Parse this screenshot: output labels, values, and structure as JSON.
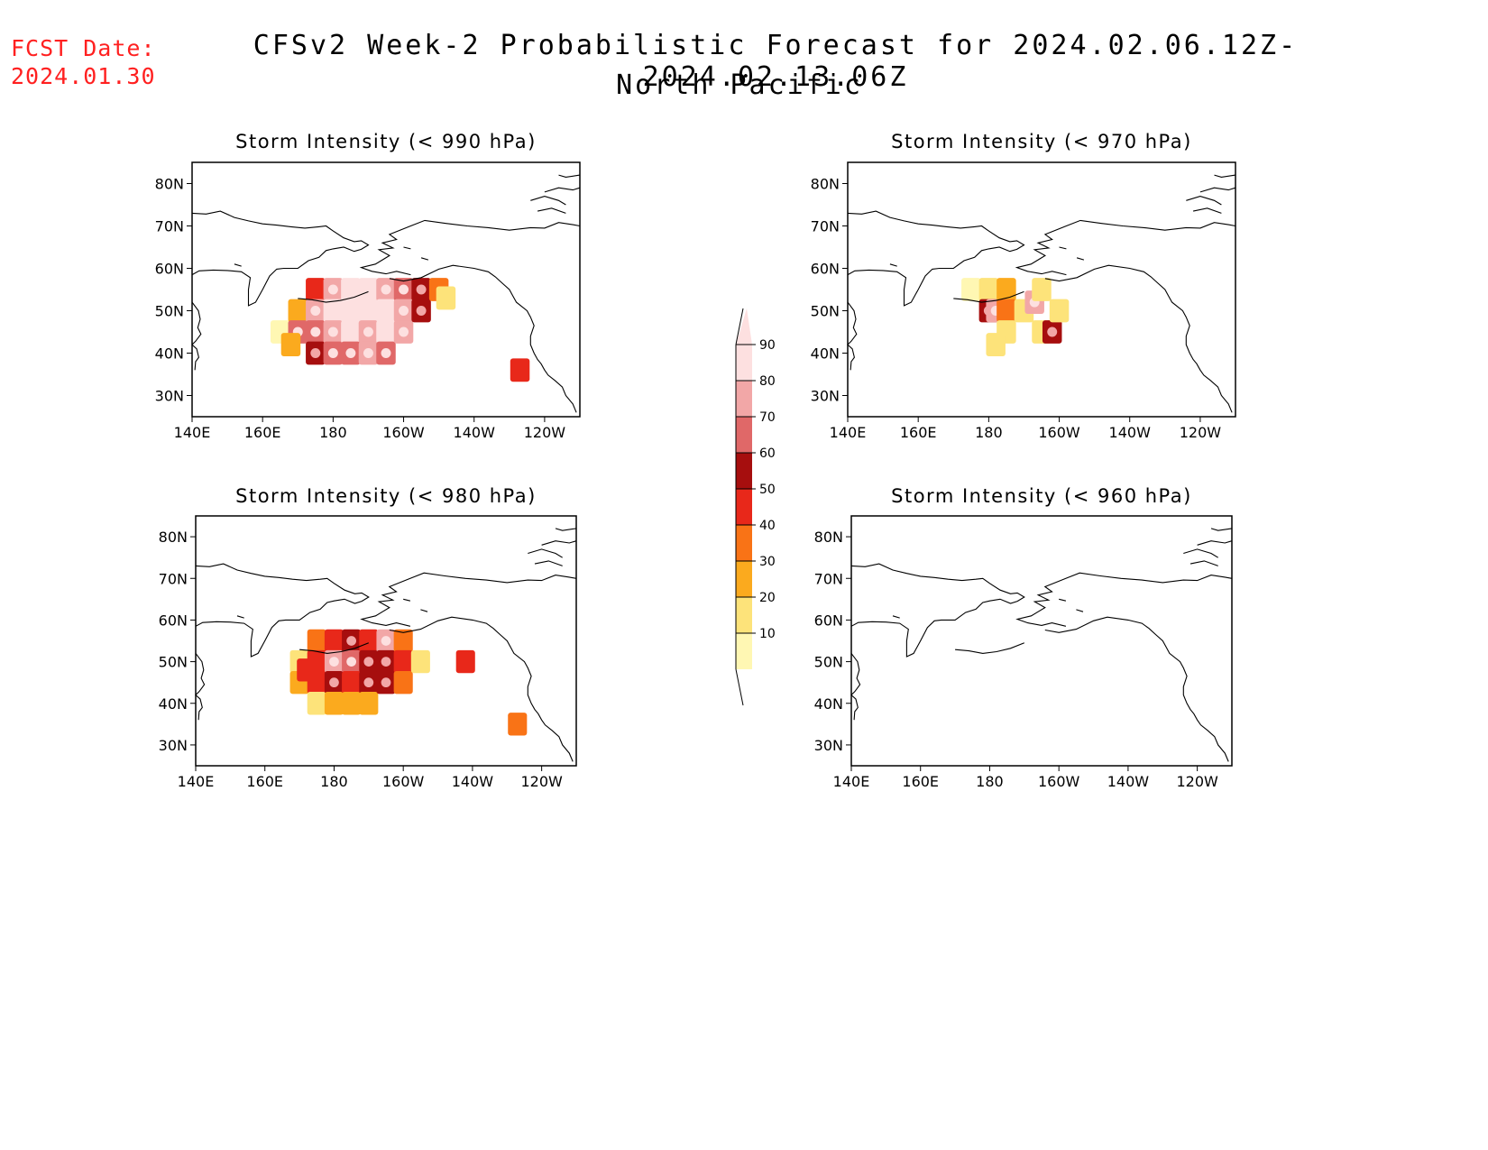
{
  "header": {
    "fcst_label": "FCST Date:",
    "fcst_date": "2024.01.30",
    "title": "CFSv2 Week-2 Probabilistic Forecast for 2024.02.06.12Z-2024.02.13.06Z",
    "subtitle": "North Pacific"
  },
  "colors": {
    "bin_10": "#fff7b3",
    "bin_20": "#fde37a",
    "bin_30": "#fbaa1e",
    "bin_40": "#f97316",
    "bin_50": "#e8281a",
    "bin_60": "#a60e0e",
    "bin_70": "#e06868",
    "bin_80": "#f2a7a7",
    "bin_90": "#fde0e0"
  },
  "colorbar": {
    "labels": [
      "10",
      "20",
      "30",
      "40",
      "50",
      "60",
      "70",
      "80",
      "90"
    ]
  },
  "lat_labels": [
    "30N",
    "40N",
    "50N",
    "60N",
    "70N",
    "80N"
  ],
  "lon_labels": [
    "140E",
    "160E",
    "180",
    "160W",
    "140W",
    "120W"
  ],
  "panels": [
    {
      "id": "990",
      "title": "Storm Intensity (< 990 hPa)"
    },
    {
      "id": "970",
      "title": "Storm Intensity (< 970 hPa)"
    },
    {
      "id": "980",
      "title": "Storm Intensity (< 980 hPa)"
    },
    {
      "id": "960",
      "title": "Storm Intensity (< 960 hPa)"
    }
  ]
}
